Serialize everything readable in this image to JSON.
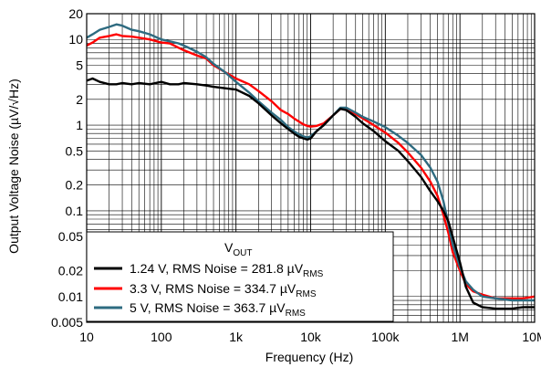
{
  "chart_data": {
    "type": "line",
    "xlabel": "Frequency (Hz)",
    "ylabel": "Output Voltage Noise (µV/√Hz)",
    "x_scale": "log",
    "y_scale": "log",
    "xlim": [
      10,
      10000000
    ],
    "ylim": [
      0.005,
      20
    ],
    "grid": true,
    "x_ticks": [
      {
        "v": 10,
        "label": "10"
      },
      {
        "v": 100,
        "label": "100"
      },
      {
        "v": 1000,
        "label": "1k"
      },
      {
        "v": 10000,
        "label": "10k"
      },
      {
        "v": 100000,
        "label": "100k"
      },
      {
        "v": 1000000,
        "label": "1M"
      },
      {
        "v": 10000000,
        "label": "10M"
      }
    ],
    "y_ticks": [
      {
        "v": 0.005,
        "label": "0.005"
      },
      {
        "v": 0.01,
        "label": "0.01"
      },
      {
        "v": 0.02,
        "label": "0.02"
      },
      {
        "v": 0.05,
        "label": "0.05"
      },
      {
        "v": 0.1,
        "label": "0.1"
      },
      {
        "v": 0.2,
        "label": "0.2"
      },
      {
        "v": 0.5,
        "label": "0.5"
      },
      {
        "v": 1,
        "label": "1"
      },
      {
        "v": 2,
        "label": "2"
      },
      {
        "v": 5,
        "label": "5"
      },
      {
        "v": 10,
        "label": "10"
      },
      {
        "v": 20,
        "label": "20"
      }
    ],
    "legend": {
      "title_main": "V",
      "title_sub": "OUT",
      "placement": "bottom-left",
      "entries": [
        {
          "text": "1.24 V, RMS Noise = 281.8 µV",
          "sub": "RMS",
          "color": "#000000"
        },
        {
          "text": "3.3 V, RMS Noise = 334.7  µV",
          "sub": "RMS",
          "color": "#ff0000"
        },
        {
          "text": "5 V, RMS Noise = 363.7  µV",
          "sub": "RMS",
          "color": "#2e6b80"
        }
      ]
    },
    "series": [
      {
        "color": "#ff0000",
        "x": [
          10,
          12,
          15,
          20,
          25,
          30,
          40,
          50,
          70,
          100,
          130,
          170,
          200,
          300,
          400,
          500,
          700,
          1000,
          1500,
          2000,
          3000,
          4000,
          5000,
          6000,
          7000,
          8000,
          9000,
          10000,
          12000,
          15000,
          20000,
          25000,
          30000,
          40000,
          50000,
          70000,
          100000,
          150000,
          200000,
          300000,
          400000,
          500000,
          600000,
          700000,
          800000,
          1000000,
          1200000,
          1500000,
          2000000,
          3000000,
          5000000,
          7000000,
          10000000
        ],
        "y": [
          8.5,
          9.2,
          10.5,
          11,
          11.5,
          11,
          10.8,
          10.5,
          10,
          9.2,
          9,
          8,
          7.5,
          6.5,
          6,
          5,
          4.2,
          3.5,
          3,
          2.5,
          1.9,
          1.5,
          1.35,
          1.2,
          1.1,
          1.02,
          0.98,
          0.96,
          0.98,
          1.05,
          1.3,
          1.55,
          1.55,
          1.35,
          1.2,
          1.0,
          0.82,
          0.62,
          0.48,
          0.32,
          0.22,
          0.15,
          0.09,
          0.055,
          0.033,
          0.02,
          0.014,
          0.0115,
          0.0105,
          0.0095,
          0.0095,
          0.0095,
          0.01
        ]
      },
      {
        "color": "#2e6b80",
        "x": [
          10,
          12,
          15,
          20,
          25,
          30,
          40,
          50,
          70,
          100,
          130,
          170,
          200,
          300,
          400,
          500,
          700,
          1000,
          1500,
          2000,
          3000,
          4000,
          5000,
          6000,
          7000,
          8000,
          9000,
          10000,
          12000,
          15000,
          20000,
          25000,
          30000,
          40000,
          50000,
          70000,
          100000,
          150000,
          200000,
          300000,
          400000,
          500000,
          600000,
          700000,
          800000,
          1000000,
          1200000,
          1500000,
          2000000,
          3000000,
          5000000,
          7000000,
          10000000
        ],
        "y": [
          10.5,
          11.5,
          13,
          14,
          15,
          14.5,
          13,
          12.5,
          11.5,
          10,
          9.5,
          9,
          8.5,
          7.2,
          6.2,
          5.2,
          4.2,
          3.2,
          2.4,
          1.9,
          1.4,
          1.15,
          0.95,
          0.85,
          0.78,
          0.74,
          0.72,
          0.74,
          0.85,
          1.0,
          1.3,
          1.6,
          1.6,
          1.4,
          1.25,
          1.1,
          0.95,
          0.75,
          0.62,
          0.45,
          0.32,
          0.22,
          0.13,
          0.07,
          0.04,
          0.022,
          0.015,
          0.012,
          0.01,
          0.0095,
          0.009,
          0.009,
          0.009
        ]
      },
      {
        "color": "#000000",
        "x": [
          10,
          12,
          15,
          20,
          25,
          30,
          40,
          50,
          70,
          100,
          130,
          170,
          200,
          300,
          400,
          500,
          700,
          1000,
          1500,
          2000,
          3000,
          4000,
          5000,
          6000,
          7000,
          8000,
          9000,
          10000,
          12000,
          15000,
          20000,
          25000,
          30000,
          40000,
          50000,
          70000,
          100000,
          150000,
          200000,
          300000,
          400000,
          500000,
          600000,
          700000,
          800000,
          1000000,
          1200000,
          1500000,
          2000000,
          3000000,
          5000000,
          7000000,
          10000000
        ],
        "y": [
          3.3,
          3.5,
          3.2,
          3.0,
          3.0,
          3.1,
          3.0,
          3.1,
          3.0,
          3.2,
          3.0,
          3.0,
          3.1,
          3.0,
          2.9,
          2.8,
          2.7,
          2.6,
          2.2,
          1.8,
          1.3,
          1.05,
          0.9,
          0.8,
          0.73,
          0.7,
          0.68,
          0.7,
          0.85,
          1.0,
          1.3,
          1.55,
          1.5,
          1.25,
          1.05,
          0.85,
          0.65,
          0.5,
          0.38,
          0.25,
          0.17,
          0.13,
          0.1,
          0.075,
          0.05,
          0.025,
          0.013,
          0.0085,
          0.0075,
          0.0072,
          0.0072,
          0.0075,
          0.0075
        ]
      }
    ]
  }
}
